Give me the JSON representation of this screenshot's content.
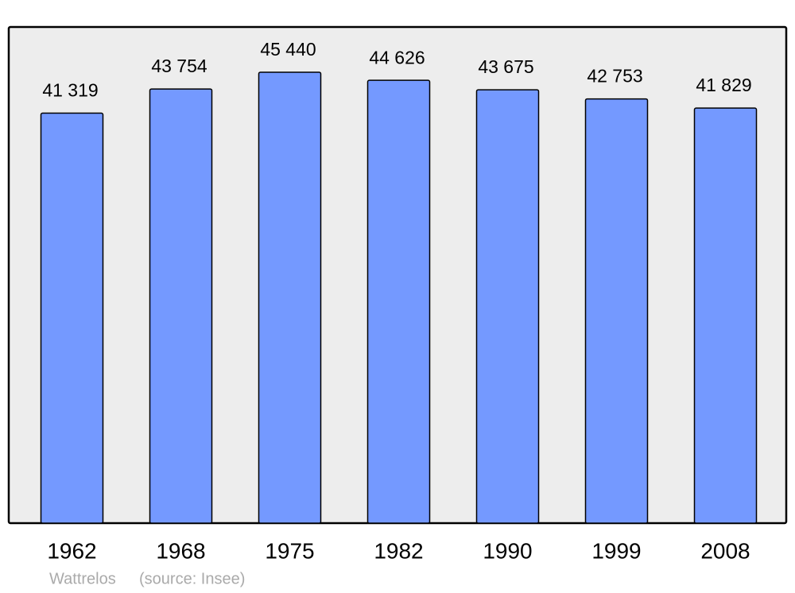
{
  "chart_data": {
    "type": "bar",
    "categories": [
      "1962",
      "1968",
      "1975",
      "1982",
      "1990",
      "1999",
      "2008"
    ],
    "values": [
      41319,
      43754,
      45440,
      44626,
      43675,
      42753,
      41829
    ],
    "value_labels": [
      "41 319",
      "43 754",
      "45 440",
      "44 626",
      "43 675",
      "42 753",
      "41 829"
    ],
    "color": "#7499ff",
    "ylim": [
      0,
      50000
    ],
    "place": "Wattrelos",
    "source": "(source: Insee)"
  }
}
